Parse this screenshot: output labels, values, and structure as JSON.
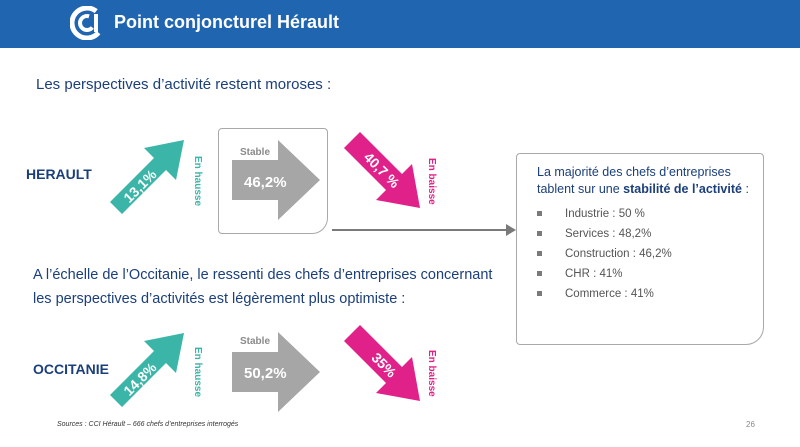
{
  "header": {
    "title": "Point conjoncturel Hérault"
  },
  "intro": "Les perspectives d’activité restent moroses :",
  "herault": {
    "label": "HERAULT",
    "up": {
      "value": "13,1%",
      "label": "En hausse"
    },
    "stable": {
      "value": "46,2%",
      "label": "Stable"
    },
    "down": {
      "value": "40,7 %",
      "label": "En baisse"
    }
  },
  "occitanie_text": {
    "line1": "A l’échelle de l’Occitanie, le ressenti des chefs d’entreprises concernant",
    "line2": "les perspectives d’activités est légèrement plus optimiste :"
  },
  "occitanie": {
    "label": "OCCITANIE",
    "up": {
      "value": "14,8%",
      "label": "En hausse"
    },
    "stable": {
      "value": "50,2%",
      "label": "Stable"
    },
    "down": {
      "value": "35%",
      "label": "En baisse"
    }
  },
  "summary": {
    "text_before": "La majorité des chefs d’entreprises tablent sur une ",
    "text_bold": "stabilité de l’activité",
    "text_after": " :",
    "items": [
      "Industrie : 50 %",
      "Services : 48,2%",
      "Construction : 46,2%",
      "CHR : 41%",
      "Commerce : 41%"
    ]
  },
  "footer": "Sources : CCI Hérault – 666 chefs d’entreprises interrogés",
  "page_number": "26",
  "colors": {
    "header": "#1f65b0",
    "teal": "#3ab5a8",
    "gray": "#a6a6a6",
    "magenta": "#e0218a",
    "navy": "#1b3f7a"
  }
}
